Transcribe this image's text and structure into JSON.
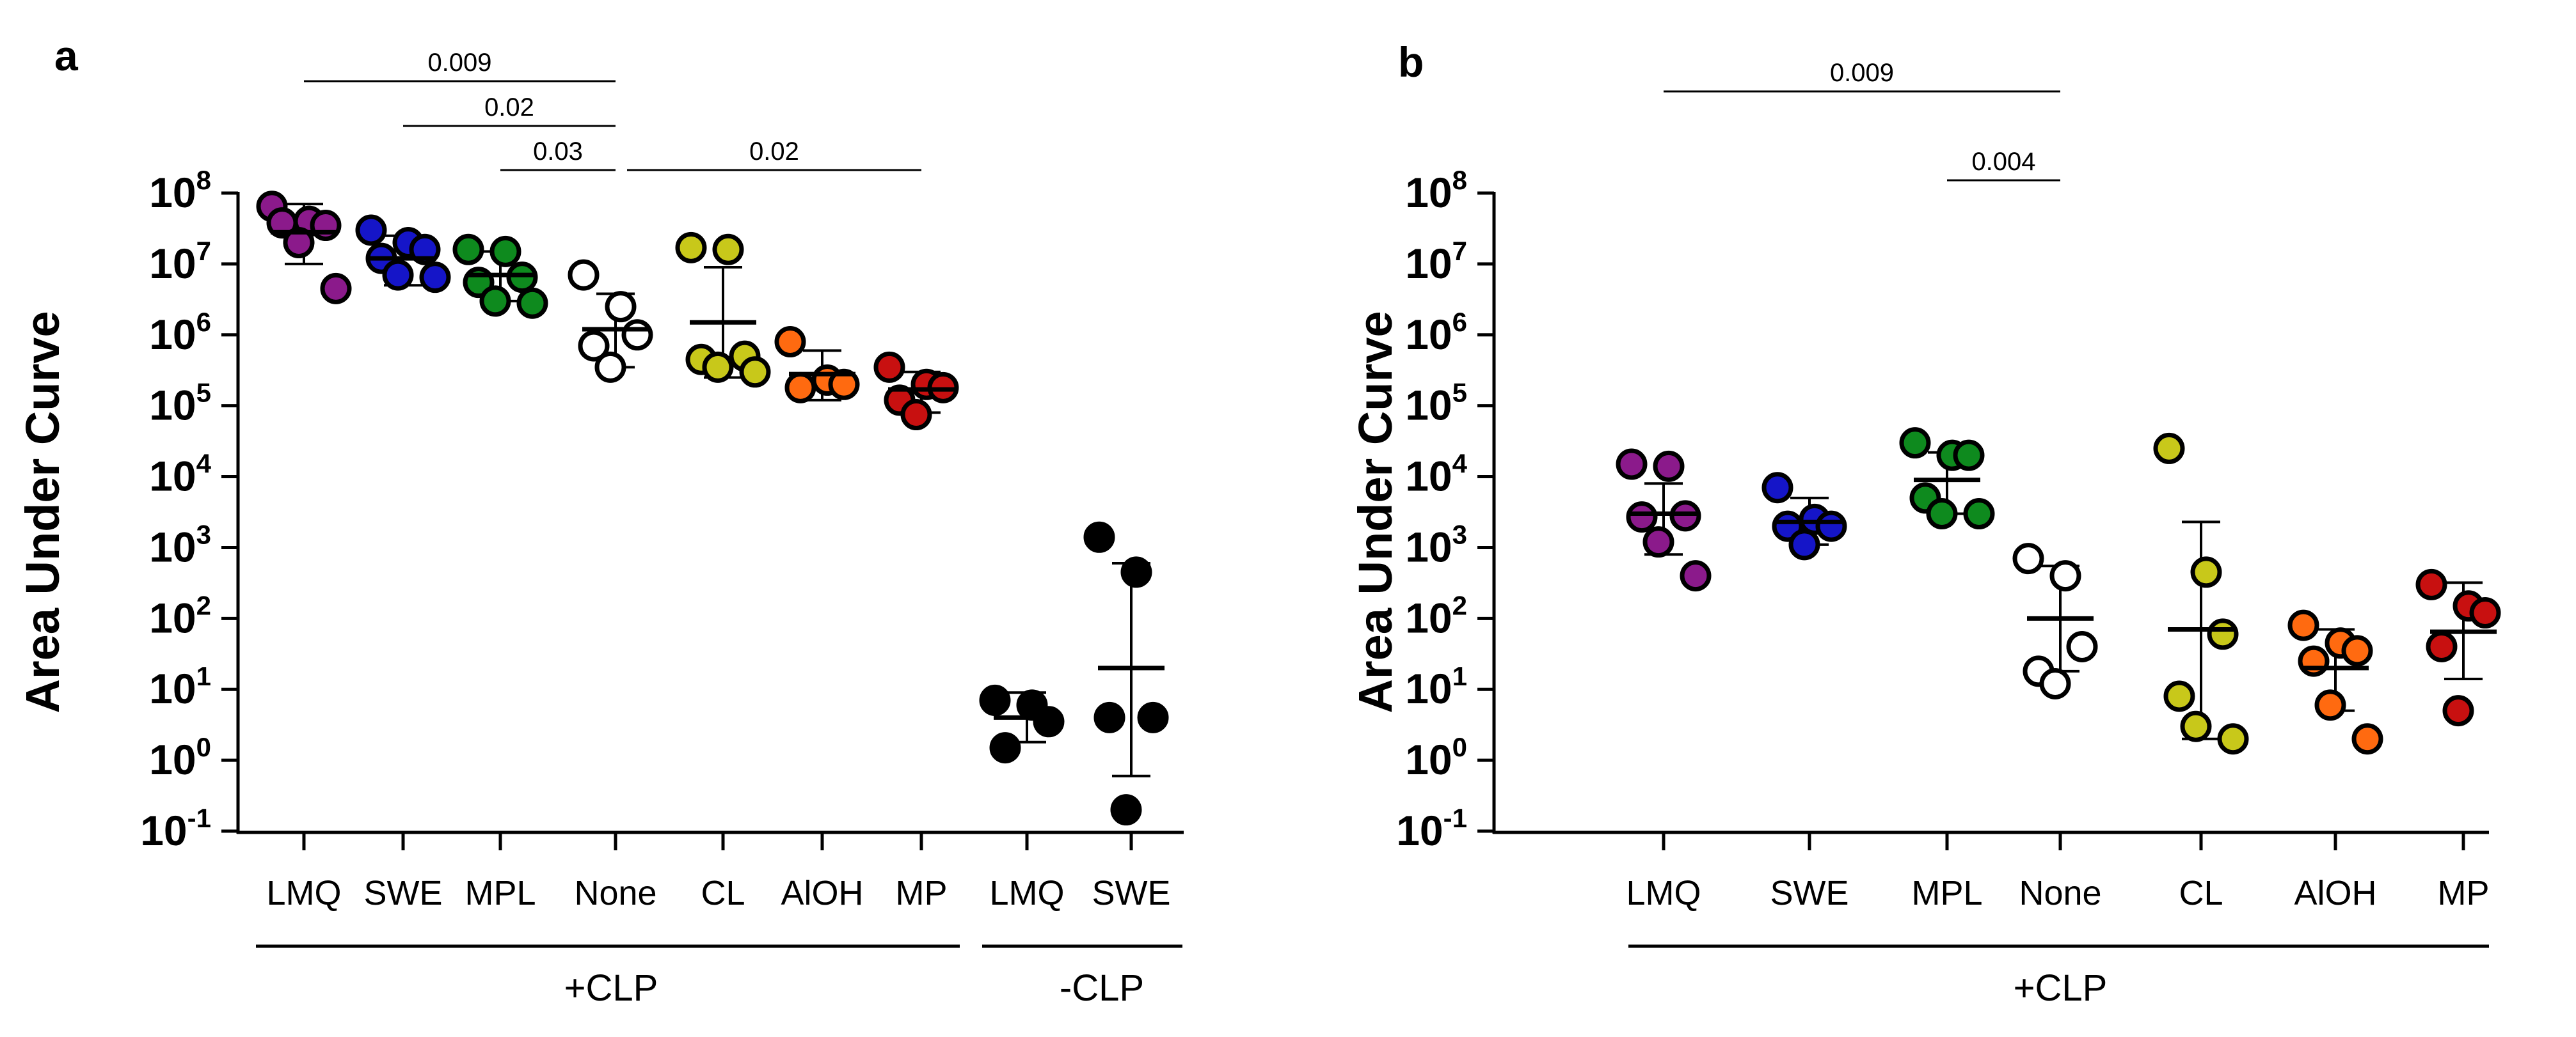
{
  "chart_data": [
    {
      "type": "scatter",
      "panel_label": "a",
      "ylabel": "Area Under Curve",
      "yscale": "log10",
      "ylim": [
        0.1,
        100000000
      ],
      "y_ticks": [
        {
          "base": "10",
          "exp": "-1"
        },
        {
          "base": "10",
          "exp": "0"
        },
        {
          "base": "10",
          "exp": "1"
        },
        {
          "base": "10",
          "exp": "2"
        },
        {
          "base": "10",
          "exp": "3"
        },
        {
          "base": "10",
          "exp": "4"
        },
        {
          "base": "10",
          "exp": "5"
        },
        {
          "base": "10",
          "exp": "6"
        },
        {
          "base": "10",
          "exp": "7"
        },
        {
          "base": "10",
          "exp": "8"
        }
      ],
      "categories": [
        "LMQ",
        "SWE",
        "MPL",
        "None",
        "CL",
        "AlOH",
        "MP",
        "LMQ",
        "SWE"
      ],
      "groups": [
        {
          "label": "+CLP",
          "from": 0,
          "to": 6
        },
        {
          "label": "-CLP",
          "from": 7,
          "to": 8
        }
      ],
      "series": [
        {
          "name": "LMQ",
          "color": "#8b1a8b",
          "values": [
            65000000,
            40000000,
            35000000,
            38000000,
            20000000,
            4500000
          ],
          "mean": 28000000,
          "err_low": 10000000,
          "err_high": 70000000
        },
        {
          "name": "SWE",
          "color": "#1515c8",
          "values": [
            30000000,
            20000000,
            16000000,
            12000000,
            7000000,
            6500000
          ],
          "mean": 12000000,
          "err_low": 5000000,
          "err_high": 25000000
        },
        {
          "name": "MPL",
          "color": "#0e8a1e",
          "values": [
            16000000,
            15000000,
            6500000,
            5500000,
            3000000,
            2800000
          ],
          "mean": 7000000,
          "err_low": 3000000,
          "err_high": 15000000
        },
        {
          "name": "None",
          "color": "#ffffff",
          "values": [
            7000000,
            2500000,
            1000000,
            700000,
            350000
          ],
          "mean": 1200000,
          "err_low": 350000,
          "err_high": 3800000
        },
        {
          "name": "CL",
          "color": "#c8c81a",
          "values": [
            17000000,
            16000000,
            500000,
            450000,
            350000,
            300000
          ],
          "mean": 1500000,
          "err_low": 250000,
          "err_high": 9000000
        },
        {
          "name": "AlOH",
          "color": "#ff6a10",
          "values": [
            800000,
            230000,
            200000,
            180000
          ],
          "mean": 280000,
          "err_low": 120000,
          "err_high": 600000
        },
        {
          "name": "MP",
          "color": "#c81010",
          "values": [
            350000,
            200000,
            180000,
            120000,
            75000
          ],
          "mean": 170000,
          "err_low": 80000,
          "err_high": 300000
        },
        {
          "name": "LMQ",
          "color": "#000000",
          "values": [
            7,
            6,
            3.5,
            1.5
          ],
          "mean": 4,
          "err_low": 1.8,
          "err_high": 9
        },
        {
          "name": "SWE",
          "color": "#000000",
          "values": [
            1400,
            450,
            4,
            4,
            0.2
          ],
          "mean": 20,
          "err_low": 0.6,
          "err_high": 600
        }
      ],
      "significance": [
        {
          "label": "0.009",
          "from": 0,
          "to": 3
        },
        {
          "label": "0.02",
          "from": 1,
          "to": 3
        },
        {
          "label": "0.03",
          "from": 2,
          "to": 3
        },
        {
          "label": "0.02",
          "from": 3,
          "to": 6
        }
      ]
    },
    {
      "type": "scatter",
      "panel_label": "b",
      "ylabel": "Area Under Curve",
      "yscale": "log10",
      "ylim": [
        0.1,
        100000000
      ],
      "y_ticks": [
        {
          "base": "10",
          "exp": "-1"
        },
        {
          "base": "10",
          "exp": "0"
        },
        {
          "base": "10",
          "exp": "1"
        },
        {
          "base": "10",
          "exp": "2"
        },
        {
          "base": "10",
          "exp": "3"
        },
        {
          "base": "10",
          "exp": "4"
        },
        {
          "base": "10",
          "exp": "5"
        },
        {
          "base": "10",
          "exp": "6"
        },
        {
          "base": "10",
          "exp": "7"
        },
        {
          "base": "10",
          "exp": "8"
        }
      ],
      "categories": [
        "LMQ",
        "SWE",
        "MPL",
        "None",
        "CL",
        "AlOH",
        "MP"
      ],
      "groups": [
        {
          "label": "+CLP",
          "from": 0,
          "to": 6
        }
      ],
      "series": [
        {
          "name": "LMQ",
          "color": "#8b1a8b",
          "values": [
            15000,
            14000,
            2800,
            2700,
            1200,
            400
          ],
          "mean": 3000,
          "err_low": 800,
          "err_high": 8000
        },
        {
          "name": "SWE",
          "color": "#1515c8",
          "values": [
            7000,
            2500,
            2000,
            2000,
            1100
          ],
          "mean": 2300,
          "err_low": 1100,
          "err_high": 5000
        },
        {
          "name": "MPL",
          "color": "#0e8a1e",
          "values": [
            30000,
            20000,
            20000,
            5000,
            3000,
            3000
          ],
          "mean": 9000,
          "err_low": 3000,
          "err_high": 22000
        },
        {
          "name": "None",
          "color": "#ffffff",
          "values": [
            700,
            400,
            40,
            18,
            12
          ],
          "mean": 100,
          "err_low": 18,
          "err_high": 550
        },
        {
          "name": "CL",
          "color": "#c8c81a",
          "values": [
            25000,
            450,
            60,
            8,
            3,
            2
          ],
          "mean": 70,
          "err_low": 2,
          "err_high": 2300
        },
        {
          "name": "AlOH",
          "color": "#ff6a10",
          "values": [
            80,
            45,
            35,
            25,
            6,
            2
          ],
          "mean": 20,
          "err_low": 5,
          "err_high": 70
        },
        {
          "name": "MP",
          "color": "#c81010",
          "values": [
            300,
            150,
            120,
            40,
            5
          ],
          "mean": 65,
          "err_low": 14,
          "err_high": 320
        }
      ],
      "significance": [
        {
          "label": "0.009",
          "from": 0,
          "to": 3
        },
        {
          "label": "0.004",
          "from": 2,
          "to": 3
        }
      ]
    }
  ]
}
